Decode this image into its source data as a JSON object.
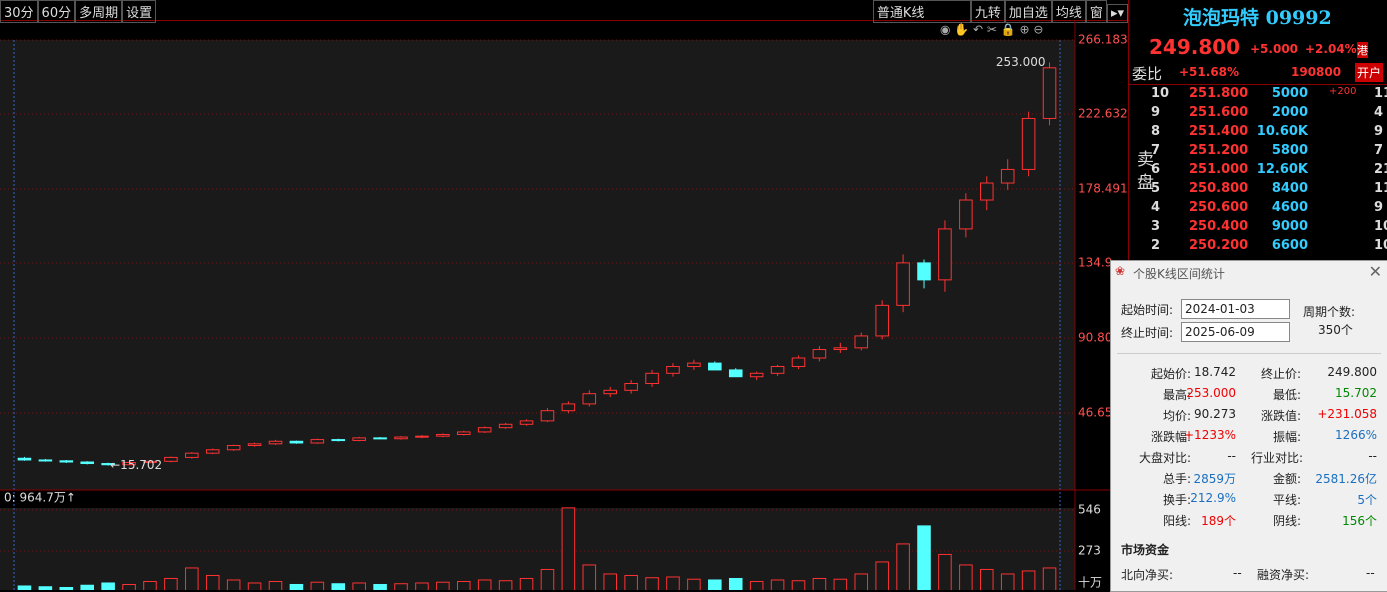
{
  "toolbar": {
    "left": [
      "30分",
      "60分",
      "多周期",
      "设置"
    ],
    "right": [
      "普通K线",
      "九转",
      "加自选",
      "均线",
      "窗"
    ]
  },
  "chart_data": [
    {
      "type": "candlestick",
      "open": [
        20.0,
        19.0,
        18.5,
        17.8,
        16.9,
        16.2,
        17.5,
        18.2,
        20.5,
        23.0,
        25.0,
        27.5,
        28.5,
        30.0,
        29.0,
        31.0,
        30.5,
        32.0,
        31.5,
        32.5,
        33.0,
        34.0,
        35.5,
        38.0,
        40.0,
        42.0,
        48.0,
        52.0,
        58.0,
        60.0,
        64.0,
        70.0,
        74.0,
        76.0,
        72.0,
        68.0,
        70.0,
        74.0,
        79.0,
        84.0,
        85.0,
        92.0,
        110.0,
        135.0,
        125.0,
        155.0,
        172.0,
        182.0,
        190.0,
        220.0
      ],
      "high": [
        20.8,
        19.6,
        19.0,
        18.3,
        17.4,
        17.9,
        18.8,
        21.0,
        23.6,
        25.7,
        28.0,
        29.2,
        30.8,
        30.4,
        31.6,
        31.5,
        32.6,
        32.5,
        33.1,
        33.6,
        34.6,
        36.2,
        38.7,
        40.8,
        42.9,
        49.5,
        53.5,
        60.0,
        62.0,
        66.0,
        72.0,
        76.0,
        78.0,
        77.0,
        73.0,
        71.0,
        75.0,
        80.5,
        86.0,
        88.0,
        94.0,
        113.0,
        140.0,
        137.0,
        160.0,
        176.0,
        186.0,
        196.0,
        224.0,
        253.0
      ],
      "low": [
        18.5,
        18.0,
        17.2,
        16.4,
        15.702,
        15.9,
        17.0,
        17.6,
        19.8,
        22.4,
        24.3,
        26.8,
        27.9,
        28.5,
        28.4,
        29.9,
        30.0,
        31.2,
        30.9,
        31.8,
        32.4,
        33.4,
        34.9,
        37.3,
        39.2,
        41.3,
        46.5,
        50.5,
        56.0,
        58.0,
        62.0,
        68.0,
        72.0,
        74.0,
        70.0,
        66.0,
        68.5,
        72.5,
        77.0,
        82.0,
        83.5,
        90.0,
        106.0,
        120.0,
        118.0,
        150.0,
        166.0,
        178.0,
        186.0,
        216.0
      ],
      "close": [
        19.0,
        18.5,
        17.8,
        16.9,
        16.2,
        17.5,
        18.2,
        20.5,
        23.0,
        25.0,
        27.5,
        28.5,
        30.0,
        29.0,
        31.0,
        30.5,
        32.0,
        31.5,
        32.5,
        33.0,
        34.0,
        35.5,
        38.0,
        40.0,
        42.0,
        48.0,
        52.0,
        58.0,
        60.0,
        64.0,
        70.0,
        74.0,
        76.0,
        72.0,
        68.0,
        70.0,
        74.0,
        79.0,
        84.0,
        85.0,
        92.0,
        110.0,
        135.0,
        125.0,
        155.0,
        172.0,
        182.0,
        190.0,
        220.0,
        249.8
      ],
      "ylim": [
        1.32,
        266.183
      ],
      "yticks": [
        266.183,
        222.632,
        178.491,
        {
          "value": 134.95,
          "label": "134.9"
        },
        {
          "value": 90.8,
          "label": "90.80"
        },
        {
          "value": 46.65,
          "label": "46.65"
        }
      ],
      "up_color": "#ff3232",
      "down_color": "#54ffff",
      "max_label": "253.000",
      "min_label": "←15.702"
    },
    {
      "type": "bar",
      "title": "0: 964.7万↑",
      "values": [
        40,
        35,
        30,
        45,
        60,
        50,
        70,
        90,
        160,
        110,
        80,
        60,
        70,
        50,
        65,
        55,
        60,
        50,
        55,
        60,
        65,
        70,
        80,
        75,
        90,
        150,
        560,
        180,
        120,
        110,
        95,
        100,
        85,
        80,
        90,
        70,
        80,
        75,
        90,
        85,
        120,
        200,
        320,
        440,
        250,
        180,
        150,
        120,
        140,
        160
      ],
      "ylim": [
        0,
        559
      ],
      "yticks": [
        546,
        273
      ],
      "unit": "十万"
    }
  ],
  "quote": {
    "name": "泡泡玛特 09992",
    "price": "249.800",
    "change": "+5.000",
    "pct": "+2.04%",
    "market": "港",
    "ratio_label": "委比",
    "ratio": "+51.68%",
    "ratio_vol": "190800",
    "open_account": "开户",
    "side": "卖盘",
    "asks": [
      {
        "level": "10",
        "price": "251.800",
        "volume": "5000",
        "change": "+200",
        "count": "11"
      },
      {
        "level": "9",
        "price": "251.600",
        "volume": "2000",
        "count": "4"
      },
      {
        "level": "8",
        "price": "251.400",
        "volume": "10.60K",
        "count": "9"
      },
      {
        "level": "7",
        "price": "251.200",
        "volume": "5800",
        "count": "7"
      },
      {
        "level": "6",
        "price": "251.000",
        "volume": "12.60K",
        "count": "21"
      },
      {
        "level": "5",
        "price": "250.800",
        "volume": "8400",
        "count": "11"
      },
      {
        "level": "4",
        "price": "250.600",
        "volume": "4600",
        "count": "9"
      },
      {
        "level": "3",
        "price": "250.400",
        "volume": "9000",
        "count": "10"
      },
      {
        "level": "2",
        "price": "250.200",
        "volume": "6600",
        "count": "10"
      }
    ]
  },
  "dialog": {
    "title": "个股K线区间统计",
    "start_label": "起始时间:",
    "start": "2024-01-03",
    "end_label": "终止时间:",
    "end": "2025-06-09",
    "periods_label": "周期个数:",
    "periods": "350个",
    "stats": [
      [
        "起始价:",
        "18.742",
        "终止价:",
        "249.800"
      ],
      [
        "最高:",
        "253.000",
        "最低:",
        "15.702"
      ],
      [
        "均价:",
        "90.273",
        "涨跌值:",
        "+231.058"
      ],
      [
        "涨跌幅:",
        "+1233%",
        "振幅:",
        "1266%"
      ],
      [
        "大盘对比:",
        "--",
        "行业对比:",
        "--"
      ],
      [
        "总手:",
        "2859万",
        "金额:",
        "2581.26亿"
      ],
      [
        "换手:",
        "212.9%",
        "平线:",
        "5个"
      ],
      [
        "阳线:",
        "189个",
        "阴线:",
        "156个"
      ]
    ],
    "fund_title": "市场资金",
    "funds": [
      "北向净买:",
      "--",
      "融资净买:",
      "--"
    ]
  }
}
